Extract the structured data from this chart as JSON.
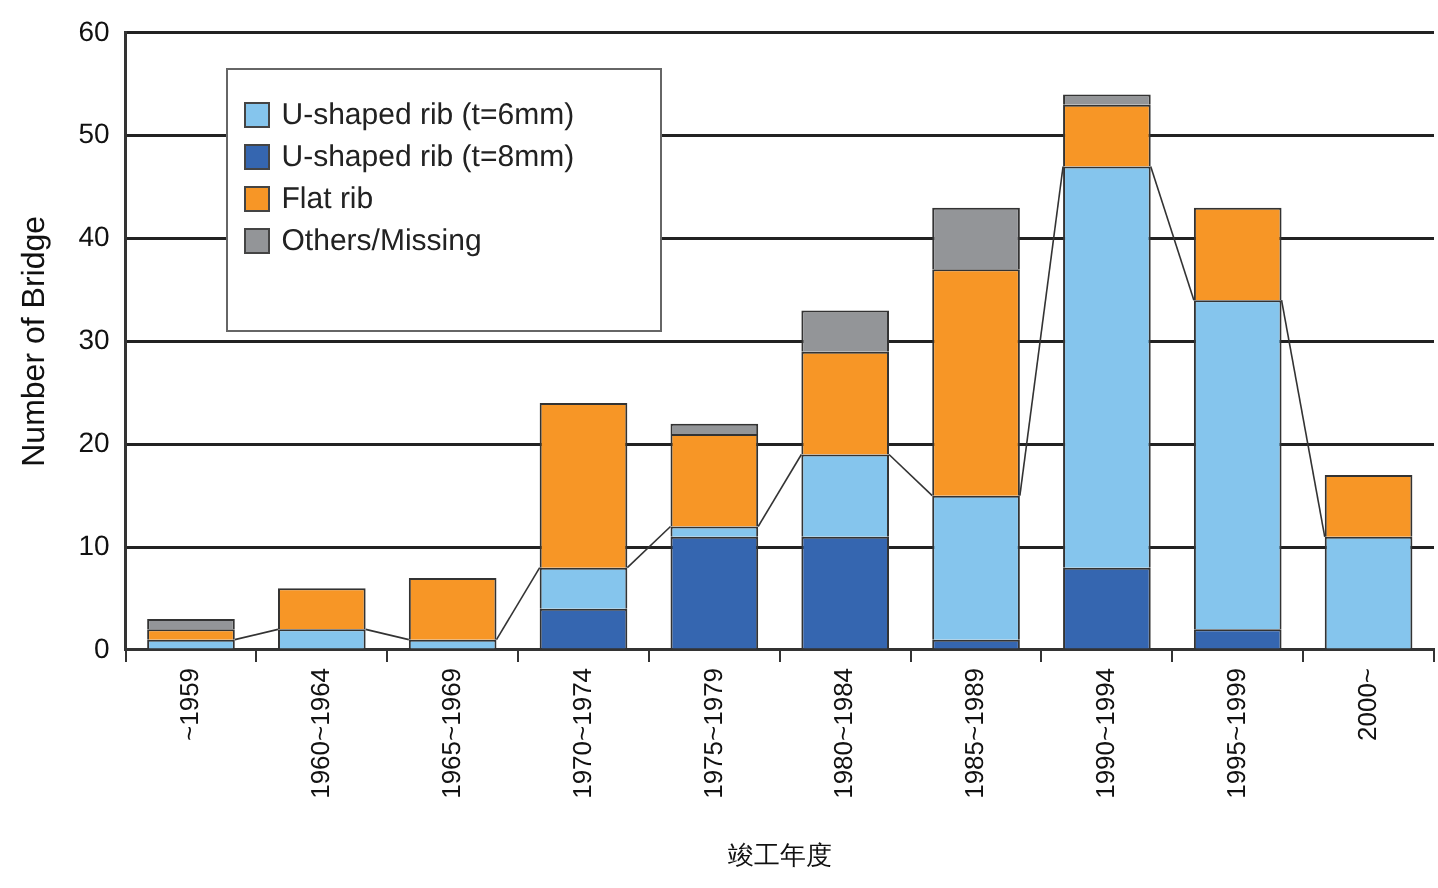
{
  "chart_data": {
    "type": "bar",
    "stacked": true,
    "xlabel": "竣工年度",
    "ylabel": "Number of Bridge",
    "categories": [
      "~1959",
      "1960~1964",
      "1965~1969",
      "1970~1974",
      "1975~1979",
      "1980~1984",
      "1985~1989",
      "1990~1994",
      "1995~1999",
      "2000~"
    ],
    "series": [
      {
        "name": "U-shaped rib (t=8mm)",
        "color": "#3566b0",
        "values": [
          0,
          0,
          0,
          4,
          11,
          11,
          1,
          8,
          2,
          0
        ]
      },
      {
        "name": "U-shaped rib (t=6mm)",
        "color": "#85c5ed",
        "values": [
          1,
          2,
          1,
          4,
          1,
          8,
          14,
          39,
          32,
          11
        ]
      },
      {
        "name": "Flat rib",
        "color": "#f79626",
        "values": [
          1,
          4,
          6,
          16,
          9,
          10,
          22,
          6,
          9,
          6
        ]
      },
      {
        "name": "Others/Missing",
        "color": "#939598",
        "values": [
          1,
          0,
          0,
          0,
          1,
          4,
          6,
          1,
          0,
          0
        ]
      }
    ],
    "ylim": [
      0,
      60
    ],
    "yticks": [
      0,
      10,
      20,
      30,
      40,
      50,
      60
    ],
    "grid": "y",
    "legend": "top left"
  }
}
